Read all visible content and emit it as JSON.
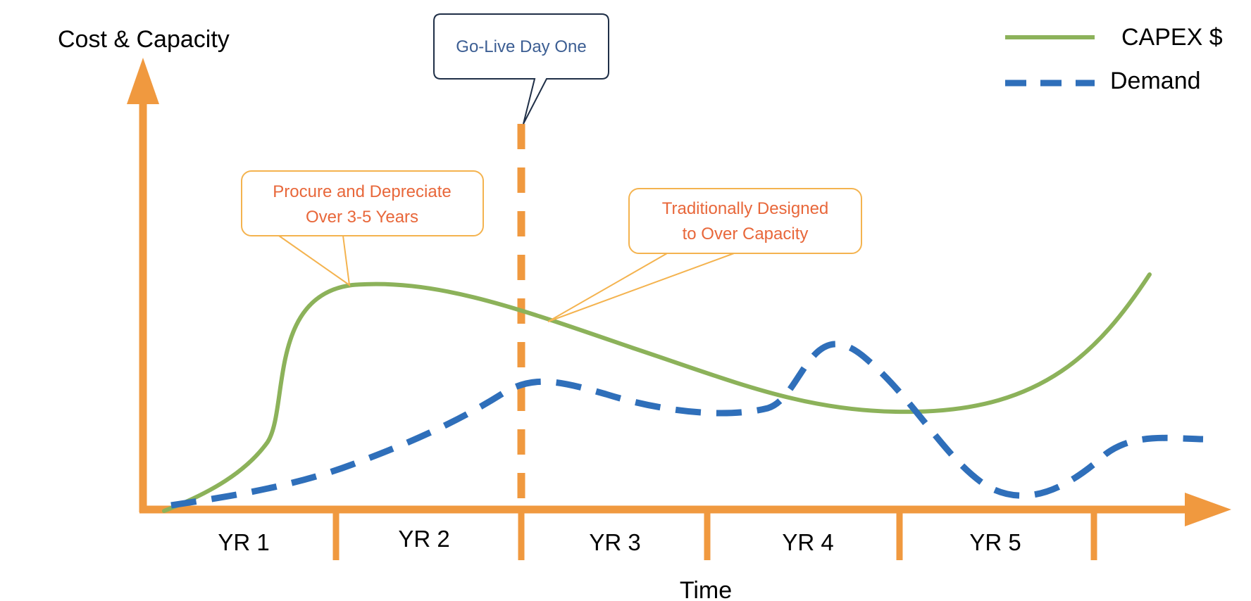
{
  "yaxis_label": "Cost & Capacity",
  "xaxis_label": "Time",
  "years": [
    "YR 1",
    "YR 2",
    "YR 3",
    "YR 4",
    "YR 5"
  ],
  "legend": {
    "capex": "CAPEX $",
    "demand": "Demand"
  },
  "callouts": {
    "golive": "Go-Live Day One",
    "procure_line1": "Procure and Depreciate",
    "procure_line2": "Over 3-5 Years",
    "traditional_line1": "Traditionally Designed",
    "traditional_line2": "to Over Capacity"
  },
  "colors": {
    "axis": "#f0993f",
    "capex": "#8cb25a",
    "demand": "#2f6fba",
    "callout_text": "#e8673a",
    "callout_border": "#f4b34f",
    "golive_text": "#3c5e93",
    "golive_border": "#1f2f47"
  }
}
